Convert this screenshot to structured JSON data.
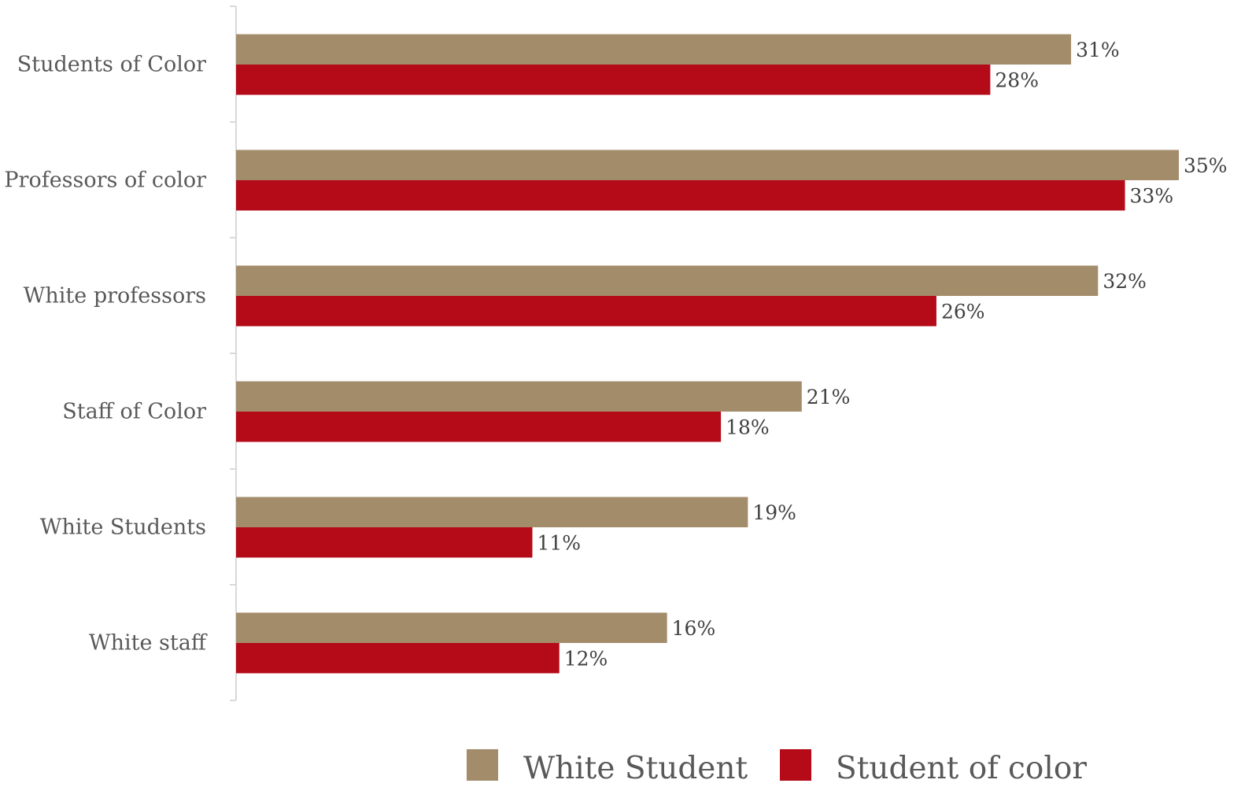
{
  "chart_data": {
    "type": "bar",
    "orientation": "horizontal",
    "categories": [
      "Students of Color",
      "Professors of color",
      "White professors",
      "Staff of Color",
      "White Students",
      "White staff"
    ],
    "series": [
      {
        "name": "White Student",
        "color": "#A38C6A",
        "values": [
          31,
          35,
          32,
          21,
          19,
          16
        ],
        "labels": [
          "31%",
          "35%",
          "32%",
          "21%",
          "19%",
          "16%"
        ]
      },
      {
        "name": "Student of color",
        "color": "#B50A18",
        "values": [
          28,
          33,
          26,
          18,
          11,
          12
        ],
        "labels": [
          "28%",
          "33%",
          "26%",
          "18%",
          "11%",
          "12%"
        ]
      }
    ],
    "unit": "%",
    "xlim": [
      0,
      35
    ],
    "grid": false,
    "legend_position": "bottom"
  }
}
